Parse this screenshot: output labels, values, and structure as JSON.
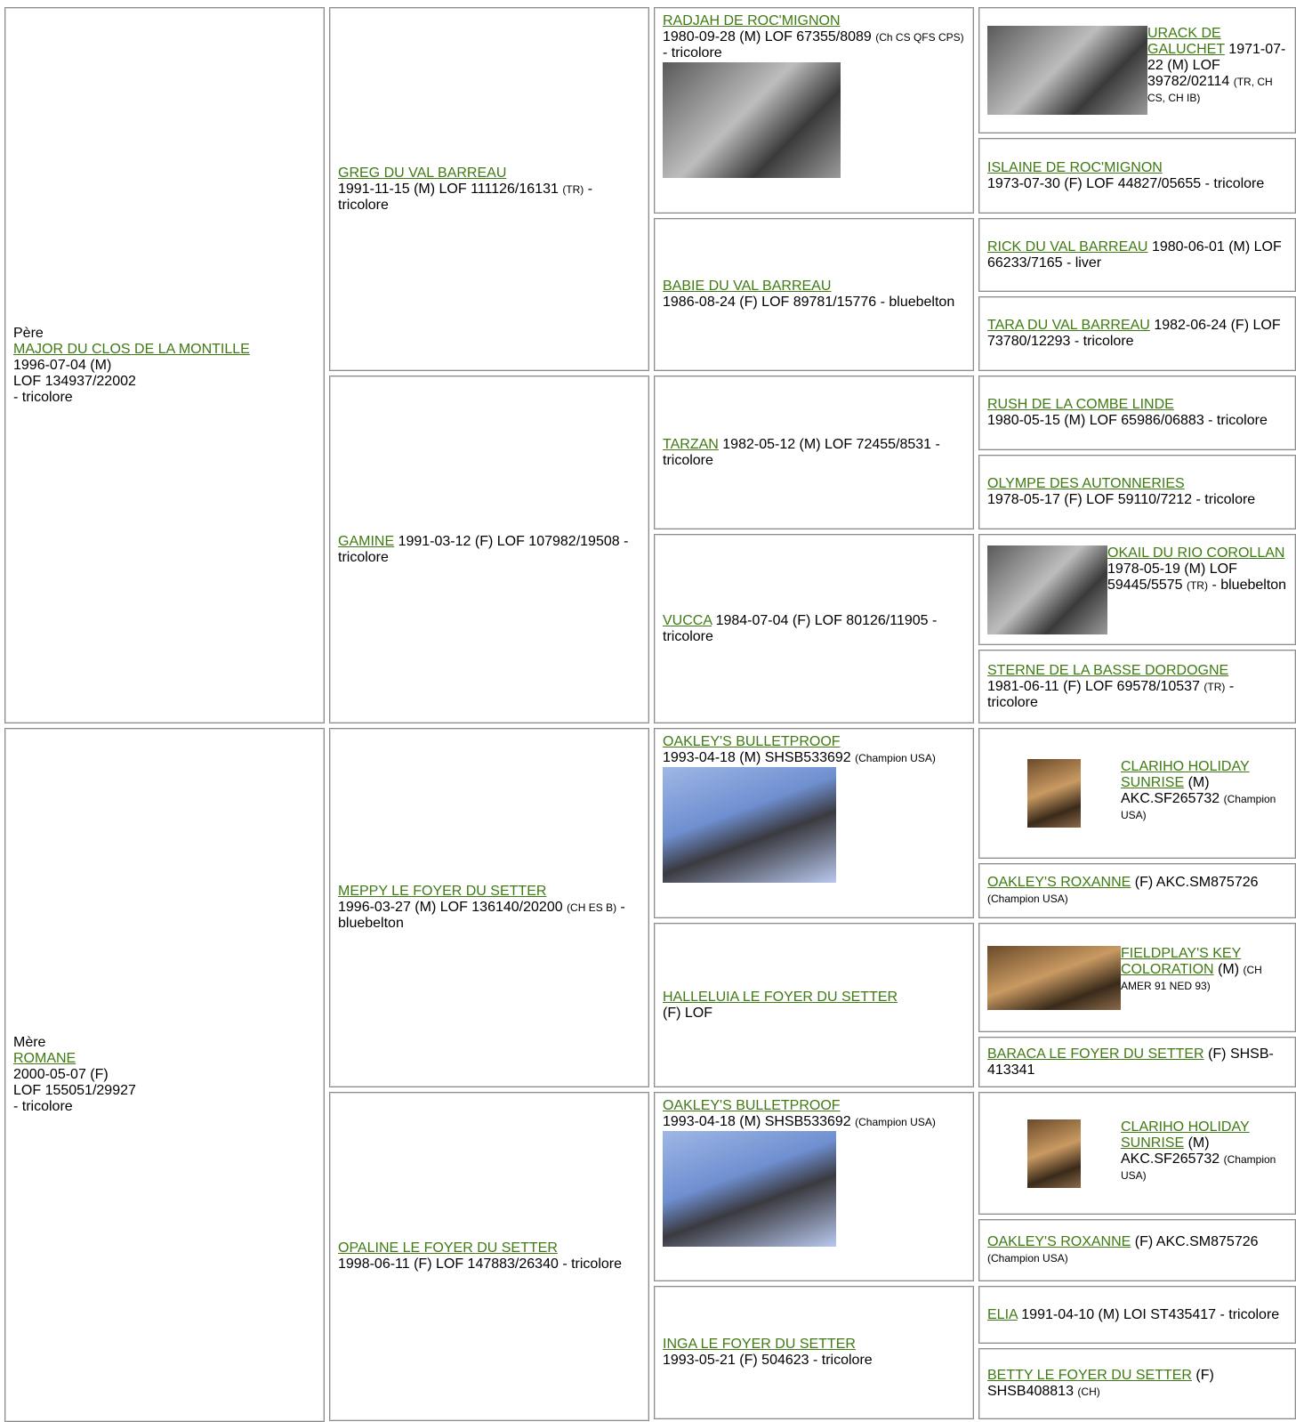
{
  "cells": [
    {
      "label": "Père",
      "name": "MAJOR DU CLOS DE LA MONTILLE",
      "lines": [
        "1996-07-04 (M)",
        "LOF 134937/22002",
        "- tricolore"
      ]
    },
    {
      "name": "GREG DU VAL BARREAU",
      "info": "1991-11-15 (M) LOF 111126/16131",
      "note": "(TR)",
      "suffix": "- tricolore"
    },
    {
      "name": "RADJAH DE ROC'MIGNON",
      "info": "1980-09-28 (M) LOF 67355/8089",
      "note": "(Ch CS QFS CPS)",
      "suffix": "- tricolore"
    },
    {
      "name": "URACK DE GALUCHET",
      "info": "1971-07-22 (M) LOF 39782/02114",
      "note": "(TR, CH CS, CH IB)"
    },
    {
      "name": "ISLAINE DE ROC'MIGNON",
      "info": "1973-07-30 (F) LOF 44827/05655 - tricolore"
    },
    {
      "name": "BABIE DU VAL BARREAU",
      "info": "1986-08-24 (F) LOF 89781/15776 - bluebelton"
    },
    {
      "name": "RICK DU VAL BARREAU",
      "info": "1980-06-01 (M) LOF 66233/7165 - liver"
    },
    {
      "name": "TARA DU VAL BARREAU",
      "info": "1982-06-24 (F) LOF 73780/12293 - tricolore"
    },
    {
      "name": "GAMINE",
      "info": "1991-03-12 (F) LOF 107982/19508 - tricolore"
    },
    {
      "name": "TARZAN",
      "info": "1982-05-12 (M) LOF 72455/8531 - tricolore"
    },
    {
      "name": "RUSH DE LA COMBE LINDE",
      "info": "1980-05-15 (M) LOF 65986/06883 - tricolore"
    },
    {
      "name": "OLYMPE DES AUTONNERIES",
      "info": "1978-05-17 (F) LOF 59110/7212 - tricolore"
    },
    {
      "name": "VUCCA",
      "info": "1984-07-04 (F) LOF 80126/11905 - tricolore"
    },
    {
      "name": "OKAIL DU RIO COROLLAN",
      "info": "1978-05-19 (M) LOF 59445/5575",
      "note": "(TR)",
      "suffix": "- bluebelton"
    },
    {
      "name": "STERNE DE LA BASSE DORDOGNE",
      "info": "1981-06-11 (F) LOF 69578/10537",
      "note": "(TR)",
      "suffix": "- tricolore"
    },
    {
      "label": "Mère",
      "name": "ROMANE",
      "lines": [
        "2000-05-07 (F)",
        "LOF 155051/29927",
        "- tricolore"
      ]
    },
    {
      "name": "MEPPY LE FOYER DU SETTER",
      "info": "1996-03-27 (M) LOF 136140/20200",
      "note": "(CH ES B)",
      "suffix": "- bluebelton"
    },
    {
      "name": "OAKLEY'S BULLETPROOF",
      "info": "1993-04-18 (M) SHSB533692",
      "note": "(Champion USA)"
    },
    {
      "name": "CLARIHO HOLIDAY SUNRISE",
      "info": "(M) AKC.SF265732",
      "note": "(Champion USA)"
    },
    {
      "name": "OAKLEY'S ROXANNE",
      "info": "(F) AKC.SM875726",
      "note": "(Champion USA)"
    },
    {
      "name": "HALLELUIA LE FOYER DU SETTER",
      "info": "(F) LOF"
    },
    {
      "name": "FIELDPLAY'S KEY COLORATION",
      "info": "(M)",
      "note": "(CH AMER 91 NED 93)"
    },
    {
      "name": "BARACA LE FOYER DU SETTER",
      "info": "(F) SHSB-413341"
    },
    {
      "name": "OPALINE LE FOYER DU SETTER",
      "info": "1998-06-11 (F) LOF 147883/26340 - tricolore"
    },
    {
      "name": "OAKLEY'S BULLETPROOF",
      "info": "1993-04-18 (M) SHSB533692",
      "note": "(Champion USA)"
    },
    {
      "name": "CLARIHO HOLIDAY SUNRISE",
      "info": "(M) AKC.SF265732",
      "note": "(Champion USA)"
    },
    {
      "name": "OAKLEY'S ROXANNE",
      "info": "(F) AKC.SM875726",
      "note": "(Champion USA)"
    },
    {
      "name": "INGA LE FOYER DU SETTER",
      "info": "1993-05-21 (F) 504623 - tricolore"
    },
    {
      "name": "ELIA",
      "info": "1991-04-10 (M) LOI ST435417 - tricolore"
    },
    {
      "name": "BETTY LE FOYER DU SETTER",
      "info": "(F) SHSB408813",
      "note": "(CH)"
    }
  ]
}
